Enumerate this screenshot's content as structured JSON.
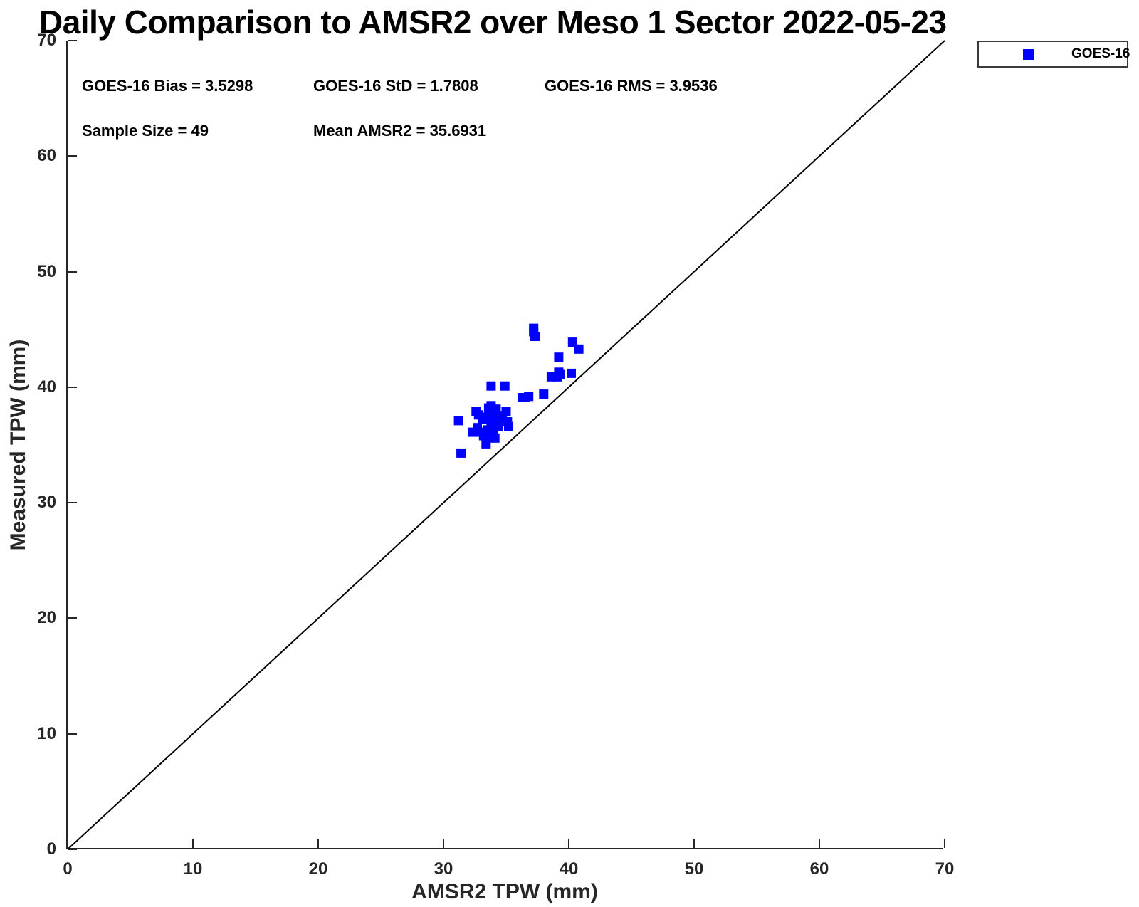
{
  "title": "Daily Comparison to AMSR2 over Meso 1 Sector 2022-05-23",
  "stats": {
    "bias": "GOES-16 Bias = 3.5298",
    "std": "GOES-16 StD = 1.7808",
    "rms": "GOES-16 RMS = 3.9536",
    "sample_size": "Sample Size = 49",
    "mean_amsr2": "Mean AMSR2 = 35.6931"
  },
  "legend": {
    "label": "GOES-16",
    "marker": "filled-square",
    "position": "top-right-outside"
  },
  "colors": {
    "marker": "#0000ff",
    "axis": "#262626",
    "reference_line": "#000000",
    "text": "#000000",
    "background": "#ffffff"
  },
  "chart_data": {
    "type": "scatter",
    "title": "Daily Comparison to AMSR2 over Meso 1 Sector 2022-05-23",
    "xlabel": "AMSR2 TPW (mm)",
    "ylabel": "Measured TPW (mm)",
    "xlim": [
      0,
      70
    ],
    "ylim": [
      0,
      70
    ],
    "xticks": [
      0,
      10,
      20,
      30,
      40,
      50,
      60,
      70
    ],
    "yticks": [
      0,
      10,
      20,
      30,
      40,
      50,
      60,
      70
    ],
    "grid": false,
    "legend_position": "top-right-outside",
    "reference_line": {
      "from": [
        0,
        0
      ],
      "to": [
        70,
        70
      ],
      "style": "solid",
      "color": "#000000"
    },
    "annotations": [
      "GOES-16 Bias = 3.5298",
      "GOES-16 StD = 1.7808",
      "GOES-16 RMS = 3.9536",
      "Sample Size = 49",
      "Mean AMSR2 = 35.6931"
    ],
    "series": [
      {
        "name": "GOES-16",
        "marker": "square",
        "color": "#0000ff",
        "sample_size": 49,
        "points": [
          [
            37.2,
            45.1
          ],
          [
            37.3,
            44.4
          ],
          [
            37.2,
            44.8
          ],
          [
            40.3,
            43.9
          ],
          [
            40.8,
            43.3
          ],
          [
            39.2,
            42.6
          ],
          [
            39.2,
            41.3
          ],
          [
            39.1,
            40.9
          ],
          [
            40.2,
            41.2
          ],
          [
            39.3,
            41.1
          ],
          [
            38.6,
            40.9
          ],
          [
            33.8,
            40.1
          ],
          [
            34.9,
            40.1
          ],
          [
            38.0,
            39.4
          ],
          [
            36.8,
            39.2
          ],
          [
            36.3,
            39.1
          ],
          [
            36.5,
            39.1
          ],
          [
            33.8,
            38.4
          ],
          [
            33.6,
            38.2
          ],
          [
            34.2,
            38.1
          ],
          [
            34.0,
            38.0
          ],
          [
            35.0,
            37.9
          ],
          [
            32.6,
            37.9
          ],
          [
            32.8,
            37.6
          ],
          [
            33.6,
            37.6
          ],
          [
            34.7,
            37.5
          ],
          [
            33.3,
            37.4
          ],
          [
            34.3,
            37.4
          ],
          [
            34.0,
            37.3
          ],
          [
            31.2,
            37.1
          ],
          [
            33.1,
            37.2
          ],
          [
            33.7,
            37.2
          ],
          [
            34.6,
            37.1
          ],
          [
            35.1,
            37.0
          ],
          [
            33.9,
            37.0
          ],
          [
            34.1,
            36.8
          ],
          [
            33.8,
            36.7
          ],
          [
            35.2,
            36.6
          ],
          [
            34.4,
            36.6
          ],
          [
            32.7,
            36.5
          ],
          [
            32.3,
            36.1
          ],
          [
            33.0,
            36.1
          ],
          [
            33.5,
            36.3
          ],
          [
            34.0,
            36.1
          ],
          [
            33.7,
            35.9
          ],
          [
            34.1,
            35.6
          ],
          [
            33.2,
            35.8
          ],
          [
            33.4,
            35.1
          ],
          [
            31.4,
            34.3
          ]
        ]
      }
    ]
  }
}
